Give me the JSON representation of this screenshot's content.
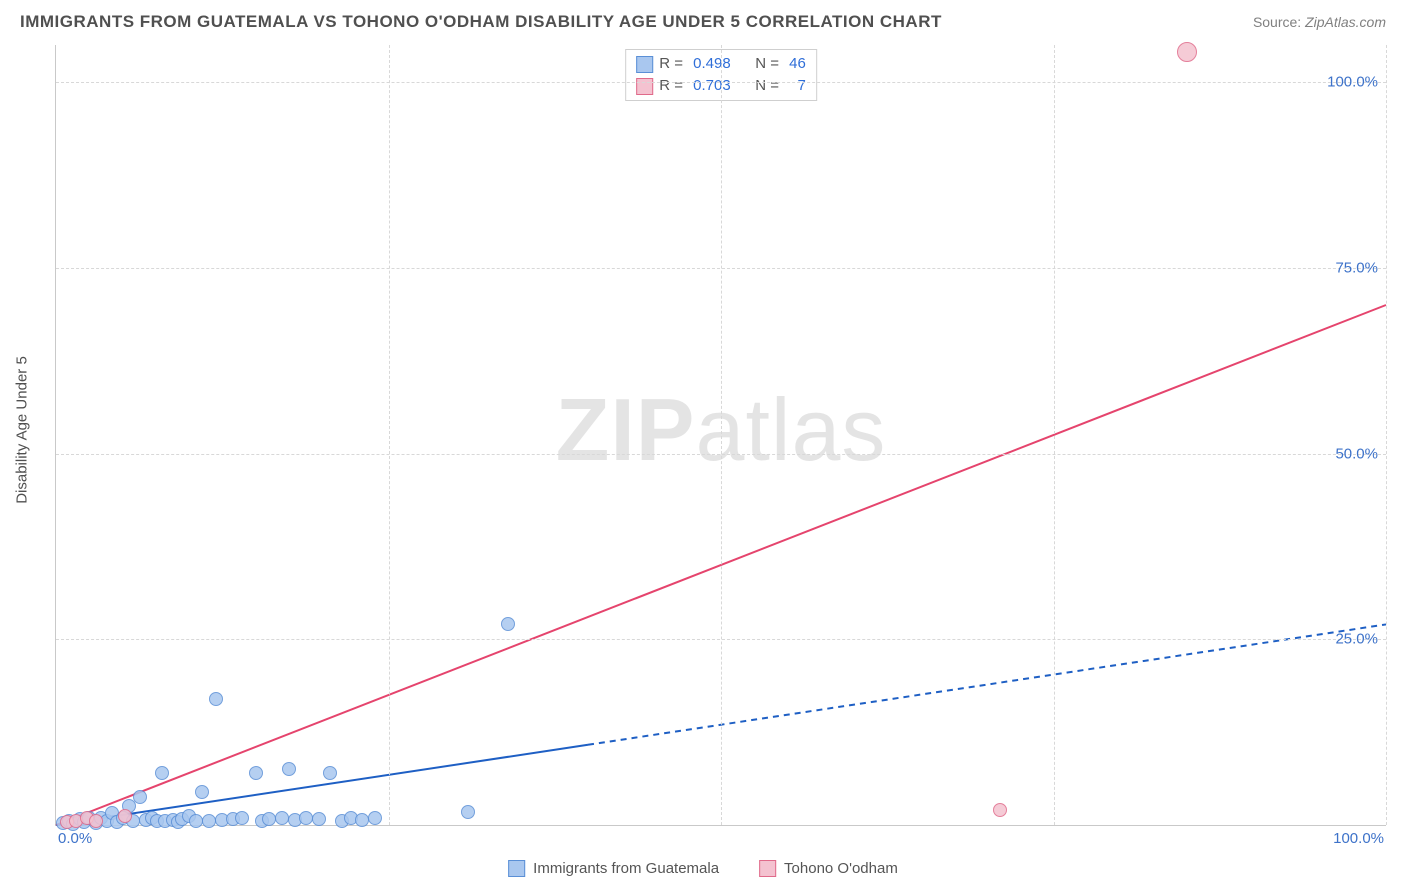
{
  "title": "IMMIGRANTS FROM GUATEMALA VS TOHONO O'ODHAM DISABILITY AGE UNDER 5 CORRELATION CHART",
  "source_label": "Source:",
  "source_value": "ZipAtlas.com",
  "ylabel": "Disability Age Under 5",
  "watermark_bold": "ZIP",
  "watermark_rest": "atlas",
  "xlim": [
    0,
    100
  ],
  "ylim": [
    0,
    105
  ],
  "yticks": [
    {
      "v": 25,
      "label": "25.0%"
    },
    {
      "v": 50,
      "label": "50.0%"
    },
    {
      "v": 75,
      "label": "75.0%"
    },
    {
      "v": 100,
      "label": "100.0%"
    }
  ],
  "vgrids_pct": [
    25,
    50,
    75,
    100
  ],
  "xaxis_left_label": "0.0%",
  "xaxis_right_label": "100.0%",
  "series": [
    {
      "key": "guatemala",
      "label": "Immigrants from Guatemala",
      "color_fill": "#a9c7ef",
      "color_stroke": "#5a8fd6",
      "R": "0.498",
      "N": "46",
      "trend": {
        "x1": 0,
        "y1": 0,
        "x2": 100,
        "y2": 27,
        "solid_until_x": 40,
        "stroke": "#1e5fc4",
        "stroke_width": 2,
        "dash": "6 5"
      },
      "points": [
        {
          "x": 0.5,
          "y": 0.3
        },
        {
          "x": 1.0,
          "y": 0.6
        },
        {
          "x": 1.3,
          "y": 0.2
        },
        {
          "x": 1.8,
          "y": 0.8
        },
        {
          "x": 2.1,
          "y": 0.4
        },
        {
          "x": 2.5,
          "y": 1.0
        },
        {
          "x": 3.0,
          "y": 0.3
        },
        {
          "x": 3.4,
          "y": 0.9
        },
        {
          "x": 3.8,
          "y": 0.5
        },
        {
          "x": 4.2,
          "y": 1.6
        },
        {
          "x": 4.6,
          "y": 0.4
        },
        {
          "x": 5.0,
          "y": 0.9
        },
        {
          "x": 5.5,
          "y": 2.5
        },
        {
          "x": 5.8,
          "y": 0.6
        },
        {
          "x": 6.3,
          "y": 3.8
        },
        {
          "x": 6.8,
          "y": 0.7
        },
        {
          "x": 7.2,
          "y": 1.0
        },
        {
          "x": 7.6,
          "y": 0.5
        },
        {
          "x": 8.0,
          "y": 7.0
        },
        {
          "x": 8.2,
          "y": 0.6
        },
        {
          "x": 8.8,
          "y": 0.7
        },
        {
          "x": 9.2,
          "y": 0.4
        },
        {
          "x": 9.5,
          "y": 0.8
        },
        {
          "x": 10.0,
          "y": 1.2
        },
        {
          "x": 10.5,
          "y": 0.6
        },
        {
          "x": 11.0,
          "y": 4.5
        },
        {
          "x": 11.5,
          "y": 0.5
        },
        {
          "x": 12.0,
          "y": 17.0
        },
        {
          "x": 12.5,
          "y": 0.7
        },
        {
          "x": 13.3,
          "y": 0.8
        },
        {
          "x": 14.0,
          "y": 1.0
        },
        {
          "x": 15.0,
          "y": 7.0
        },
        {
          "x": 15.5,
          "y": 0.6
        },
        {
          "x": 16.0,
          "y": 0.8
        },
        {
          "x": 17.0,
          "y": 1.0
        },
        {
          "x": 17.5,
          "y": 7.5
        },
        {
          "x": 18.0,
          "y": 0.7
        },
        {
          "x": 18.8,
          "y": 1.0
        },
        {
          "x": 19.8,
          "y": 0.8
        },
        {
          "x": 20.6,
          "y": 7.0
        },
        {
          "x": 21.5,
          "y": 0.6
        },
        {
          "x": 22.2,
          "y": 0.9
        },
        {
          "x": 23.0,
          "y": 0.7
        },
        {
          "x": 24.0,
          "y": 1.0
        },
        {
          "x": 31.0,
          "y": 1.7
        },
        {
          "x": 34.0,
          "y": 27.0
        }
      ]
    },
    {
      "key": "tohono",
      "label": "Tohono O'odham",
      "color_fill": "#f4c2d0",
      "color_stroke": "#e06a8a",
      "R": "0.703",
      "N": "7",
      "trend": {
        "x1": 0,
        "y1": 0,
        "x2": 100,
        "y2": 70,
        "solid_until_x": 100,
        "stroke": "#e5446d",
        "stroke_width": 2,
        "dash": ""
      },
      "points": [
        {
          "x": 0.8,
          "y": 0.4
        },
        {
          "x": 1.5,
          "y": 0.6
        },
        {
          "x": 2.3,
          "y": 0.9
        },
        {
          "x": 3.0,
          "y": 0.5
        },
        {
          "x": 5.2,
          "y": 1.2
        },
        {
          "x": 71.0,
          "y": 2.0
        },
        {
          "x": 85.0,
          "y": 104,
          "big": true
        }
      ]
    }
  ],
  "legend_top_prefix_R": "R = ",
  "legend_top_prefix_N": "N = ",
  "colors": {
    "axis_text": "#3d72c9",
    "grid": "#d8d8d8",
    "title": "#505050"
  }
}
